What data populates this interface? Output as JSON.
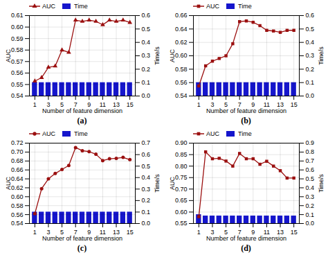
{
  "chart_data": [
    {
      "type": "line",
      "title": "(a)",
      "x": [
        1,
        2,
        3,
        4,
        5,
        6,
        7,
        8,
        9,
        10,
        11,
        12,
        13,
        14,
        15
      ],
      "xlabel": "Number of feature dimension",
      "ylabel": "AUC",
      "y2label": "Time/s",
      "xlim": [
        0.2,
        15.8
      ],
      "xticks": [
        1,
        3,
        5,
        7,
        9,
        11,
        13,
        15
      ],
      "ylim": [
        0.54,
        0.61
      ],
      "yticks": [
        0.54,
        0.55,
        0.56,
        0.57,
        0.58,
        0.59,
        {
          "value": 0.6,
          "label": "0.60"
        },
        0.61
      ],
      "y2lim": [
        0,
        0.6
      ],
      "y2ticks": [
        {
          "value": 0,
          "label": "0.0"
        },
        0.1,
        0.2,
        0.3,
        0.4,
        0.5,
        0.6
      ],
      "grid": true,
      "legend": "top-left",
      "series": [
        {
          "name": "AUC",
          "type": "line",
          "color": "#9b1010",
          "marker": "triangle",
          "values": [
            0.553,
            0.556,
            0.565,
            0.566,
            0.58,
            0.578,
            0.606,
            0.605,
            0.606,
            0.605,
            0.602,
            0.606,
            0.605,
            0.606,
            0.604
          ]
        },
        {
          "name": "Time",
          "type": "bar",
          "axis": "y2",
          "color": "#1515cc",
          "values": [
            0.1,
            0.1,
            0.1,
            0.1,
            0.1,
            0.1,
            0.1,
            0.1,
            0.1,
            0.1,
            0.1,
            0.1,
            0.1,
            0.1,
            0.1
          ]
        }
      ]
    },
    {
      "type": "line",
      "title": "(b)",
      "x": [
        1,
        2,
        3,
        4,
        5,
        6,
        7,
        8,
        9,
        10,
        11,
        12,
        13,
        14,
        15
      ],
      "xlabel": "Number of feature dimension",
      "ylabel": "AUC",
      "y2label": "Time/s",
      "xlim": [
        0.2,
        15.8
      ],
      "xticks": [
        1,
        3,
        5,
        7,
        9,
        11,
        13,
        15
      ],
      "ylim": [
        0.54,
        0.66
      ],
      "yticks": [
        0.54,
        0.56,
        0.58,
        {
          "value": 0.6,
          "label": "0.60"
        },
        0.62,
        0.64,
        0.66
      ],
      "y2lim": [
        0,
        0.6
      ],
      "y2ticks": [
        {
          "value": 0,
          "label": "0.0"
        },
        0.1,
        0.2,
        0.3,
        0.4,
        0.5,
        0.6
      ],
      "grid": true,
      "legend": "top-left",
      "series": [
        {
          "name": "AUC",
          "type": "line",
          "color": "#9b1010",
          "marker": "square",
          "values": [
            0.555,
            0.585,
            0.592,
            0.596,
            0.6,
            0.618,
            0.651,
            0.652,
            0.65,
            0.645,
            0.638,
            0.637,
            0.635,
            0.638,
            0.638
          ]
        },
        {
          "name": "Time",
          "type": "bar",
          "axis": "y2",
          "color": "#1515cc",
          "values": [
            0.1,
            0.1,
            0.1,
            0.1,
            0.1,
            0.1,
            0.1,
            0.1,
            0.1,
            0.1,
            0.1,
            0.1,
            0.1,
            0.1,
            0.1
          ]
        }
      ]
    },
    {
      "type": "line",
      "title": "(c)",
      "x": [
        1,
        2,
        3,
        4,
        5,
        6,
        7,
        8,
        9,
        10,
        11,
        12,
        13,
        14,
        15
      ],
      "xlabel": "Number of feature dimension",
      "ylabel": "AUC",
      "y2label": "Time/s",
      "xlim": [
        0.2,
        15.8
      ],
      "xticks": [
        1,
        3,
        5,
        7,
        9,
        11,
        13,
        15
      ],
      "ylim": [
        0.54,
        0.72
      ],
      "yticks": [
        0.54,
        0.56,
        0.58,
        {
          "value": 0.6,
          "label": "0.60"
        },
        0.62,
        0.64,
        0.66,
        0.68,
        {
          "value": 0.7,
          "label": "0.70"
        },
        0.72
      ],
      "y2lim": [
        0,
        0.7
      ],
      "y2ticks": [
        {
          "value": 0,
          "label": "0.0"
        },
        0.1,
        0.2,
        0.3,
        0.4,
        0.5,
        0.6,
        0.7
      ],
      "grid": true,
      "legend": "top-left",
      "series": [
        {
          "name": "AUC",
          "type": "line",
          "color": "#9b1010",
          "marker": "circle",
          "values": [
            0.562,
            0.618,
            0.64,
            0.652,
            0.661,
            0.67,
            0.71,
            0.703,
            0.701,
            0.695,
            0.681,
            0.685,
            0.686,
            0.688,
            0.683
          ]
        },
        {
          "name": "Time",
          "type": "bar",
          "axis": "y2",
          "color": "#1515cc",
          "values": [
            0.1,
            0.1,
            0.1,
            0.1,
            0.1,
            0.1,
            0.1,
            0.1,
            0.1,
            0.1,
            0.1,
            0.1,
            0.1,
            0.1,
            0.1
          ]
        }
      ]
    },
    {
      "type": "line",
      "title": "(d)",
      "x": [
        1,
        2,
        3,
        4,
        5,
        6,
        7,
        8,
        9,
        10,
        11,
        12,
        13,
        14,
        15
      ],
      "xlabel": "Number of feature dimension",
      "ylabel": "AUC",
      "y2label": "Time/s",
      "xlim": [
        0.2,
        15.8
      ],
      "xticks": [
        1,
        3,
        5,
        7,
        9,
        11,
        13,
        15
      ],
      "ylim": [
        0.55,
        0.9
      ],
      "yticks": [
        0.55,
        {
          "value": 0.6,
          "label": "0.60"
        },
        0.65,
        {
          "value": 0.7,
          "label": "0.70"
        },
        0.75,
        {
          "value": 0.8,
          "label": "0.80"
        },
        0.85,
        {
          "value": 0.9,
          "label": "0.90"
        }
      ],
      "y2lim": [
        0,
        0.9
      ],
      "y2ticks": [
        {
          "value": 0,
          "label": "0.0"
        },
        0.1,
        0.2,
        0.3,
        0.4,
        0.5,
        0.6,
        0.7,
        0.8,
        0.9
      ],
      "grid": true,
      "legend": "top-left",
      "series": [
        {
          "name": "AUC",
          "type": "line",
          "color": "#9b1010",
          "marker": "square",
          "values": [
            0.58,
            0.862,
            0.832,
            0.834,
            0.822,
            0.8,
            0.855,
            0.832,
            0.832,
            0.808,
            0.821,
            0.8,
            0.78,
            0.748,
            0.748
          ]
        },
        {
          "name": "Time",
          "type": "bar",
          "axis": "y2",
          "color": "#1515cc",
          "values": [
            0.1,
            0.085,
            0.085,
            0.085,
            0.085,
            0.085,
            0.085,
            0.085,
            0.085,
            0.085,
            0.085,
            0.085,
            0.085,
            0.085,
            0.085
          ]
        }
      ]
    }
  ]
}
